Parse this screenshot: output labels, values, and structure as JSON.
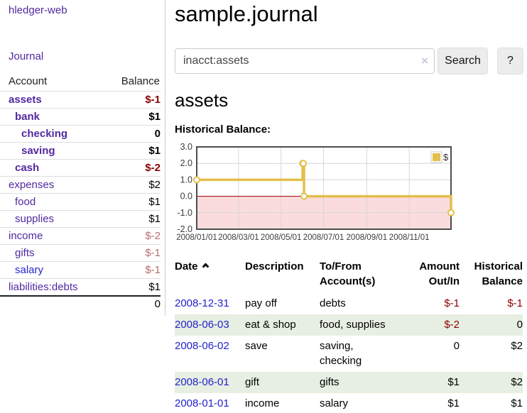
{
  "app": {
    "title": "hledger-web"
  },
  "sidebar": {
    "journal_link": "Journal",
    "table": {
      "account_header": "Account",
      "balance_header": "Balance",
      "total": "0"
    },
    "accounts": [
      {
        "name": "assets",
        "balance": "$-1",
        "depth": 1,
        "row_class": "bold",
        "name_class": "purple",
        "bal_class": "neg-dark"
      },
      {
        "name": "bank",
        "balance": "$1",
        "depth": 2,
        "row_class": "bold",
        "name_class": "purple",
        "bal_class": ""
      },
      {
        "name": "checking",
        "balance": "0",
        "depth": 3,
        "row_class": "bold",
        "name_class": "purple",
        "bal_class": ""
      },
      {
        "name": "saving",
        "balance": "$1",
        "depth": 3,
        "row_class": "bold",
        "name_class": "purple",
        "bal_class": ""
      },
      {
        "name": "cash",
        "balance": "$-2",
        "depth": 2,
        "row_class": "bold",
        "name_class": "purple",
        "bal_class": "neg-dark"
      },
      {
        "name": "expenses",
        "balance": "$2",
        "depth": 1,
        "row_class": "",
        "name_class": "purple",
        "bal_class": ""
      },
      {
        "name": "food",
        "balance": "$1",
        "depth": 2,
        "row_class": "",
        "name_class": "purple",
        "bal_class": ""
      },
      {
        "name": "supplies",
        "balance": "$1",
        "depth": 2,
        "row_class": "",
        "name_class": "purple",
        "bal_class": ""
      },
      {
        "name": "income",
        "balance": "$-2",
        "depth": 1,
        "row_class": "",
        "name_class": "purple",
        "bal_class": "neg-light"
      },
      {
        "name": "gifts",
        "balance": "$-1",
        "depth": 2,
        "row_class": "",
        "name_class": "purple",
        "bal_class": "neg-light"
      },
      {
        "name": "salary",
        "balance": "$-1",
        "depth": 2,
        "row_class": "",
        "name_class": "blue",
        "bal_class": "neg-light"
      },
      {
        "name": "liabilities:debts",
        "balance": "$1",
        "depth": 1,
        "row_class": "",
        "name_class": "purple",
        "bal_class": ""
      }
    ]
  },
  "header": {
    "title": "sample.journal"
  },
  "search": {
    "value": "inacct:assets",
    "clear_icon": "×",
    "button": "Search",
    "help_button": "?"
  },
  "account_page": {
    "title": "assets",
    "chart_label": "Historical Balance:"
  },
  "chart_data": {
    "type": "line",
    "style": "steps",
    "title": "Historical Balance:",
    "series": [
      {
        "name": "$",
        "color": "#e4bf4b",
        "points": [
          [
            "2008-01-01",
            1
          ],
          [
            "2008-06-01",
            2
          ],
          [
            "2008-06-02",
            2
          ],
          [
            "2008-06-03",
            0
          ],
          [
            "2008-12-31",
            -1
          ]
        ]
      }
    ],
    "x_range": [
      "2008-01-01",
      "2008-12-31"
    ],
    "ylim": [
      -2,
      3
    ],
    "x_ticks": [
      "2008/01/01",
      "2008/03/01",
      "2008/05/01",
      "2008/07/01",
      "2008/09/01",
      "2008/11/01"
    ],
    "y_ticks": [
      "3.0",
      "2.0",
      "1.0",
      "0.0",
      "-1.0",
      "-2.0"
    ],
    "legend": {
      "label": "$",
      "position": "top-right"
    },
    "grid": true,
    "colors": {
      "line": "#e4bf4b",
      "marker_fill": "#ffffff",
      "grid": "#d7d7d7",
      "border": "#4d4d4d",
      "negative_region": "#fbdcdc",
      "zero_line": "#a40000",
      "tick_text": "#3c3c3c"
    }
  },
  "register": {
    "headers": {
      "date": "Date",
      "description": "Description",
      "accounts": "To/From Account(s)",
      "amount": "Amount Out/In",
      "balance": "Historical Balance"
    },
    "rows": [
      {
        "date": "2008-12-31",
        "description": "pay off",
        "accounts": "debts",
        "amount": "$-1",
        "amount_class": "neg",
        "balance": "$-1",
        "balance_class": "neg"
      },
      {
        "date": "2008-06-03",
        "description": "eat & shop",
        "accounts": "food, supplies",
        "amount": "$-2",
        "amount_class": "neg",
        "balance": "0",
        "balance_class": ""
      },
      {
        "date": "2008-06-02",
        "description": "save",
        "accounts": "saving,\nchecking",
        "amount": "0",
        "amount_class": "",
        "balance": "$2",
        "balance_class": ""
      },
      {
        "date": "2008-06-01",
        "description": "gift",
        "accounts": "gifts",
        "amount": "$1",
        "amount_class": "",
        "balance": "$2",
        "balance_class": ""
      },
      {
        "date": "2008-01-01",
        "description": "income",
        "accounts": "salary",
        "amount": "$1",
        "amount_class": "",
        "balance": "$1",
        "balance_class": ""
      }
    ]
  }
}
